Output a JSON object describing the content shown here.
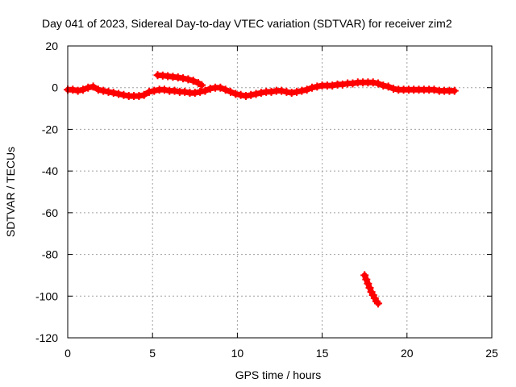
{
  "chart_data": {
    "type": "scatter",
    "title": "Day 041 of 2023, Sidereal Day-to-day VTEC variation (SDTVAR) for receiver zim2",
    "xlabel": "GPS time / hours",
    "ylabel": "SDTVAR / TECUs",
    "xlim": [
      0,
      25
    ],
    "ylim": [
      -120,
      20
    ],
    "xticks": [
      0,
      5,
      10,
      15,
      20,
      25
    ],
    "yticks": [
      -120,
      -100,
      -80,
      -60,
      -40,
      -20,
      0,
      20
    ],
    "grid": true,
    "point_marker": "+",
    "series": [
      {
        "name": "main trace",
        "color": "#ff0000",
        "x": [
          0.0,
          0.3,
          0.6,
          0.9,
          1.2,
          1.5,
          1.8,
          2.1,
          2.4,
          2.7,
          3.0,
          3.3,
          3.6,
          3.9,
          4.2,
          4.5,
          4.8,
          5.1,
          5.4,
          5.7,
          6.0,
          6.3,
          6.6,
          6.9,
          7.2,
          7.5,
          7.8,
          8.1,
          8.4,
          8.7,
          9.0,
          9.3,
          9.6,
          9.9,
          10.2,
          10.5,
          10.8,
          11.1,
          11.4,
          11.7,
          12.0,
          12.3,
          12.6,
          12.9,
          13.2,
          13.5,
          13.8,
          14.1,
          14.4,
          14.7,
          15.0,
          15.3,
          15.6,
          15.9,
          16.2,
          16.5,
          16.8,
          17.1,
          17.4,
          17.7,
          18.0,
          18.3,
          18.6,
          18.9,
          19.2,
          19.5,
          19.8,
          20.1,
          20.4,
          20.7,
          21.0,
          21.3,
          21.6,
          21.9,
          22.2,
          22.5,
          22.8
        ],
        "y": [
          -1,
          -1,
          -1.5,
          -1,
          0,
          0.5,
          -1,
          -1.5,
          -2,
          -2.5,
          -3,
          -3.5,
          -4,
          -4,
          -4,
          -3.5,
          -2,
          -1.5,
          -1,
          -1,
          -1.5,
          -1.5,
          -2,
          -2,
          -2.5,
          -2.5,
          -2,
          -1.5,
          -0.5,
          0,
          0,
          -1,
          -2,
          -3,
          -3.5,
          -4,
          -3.5,
          -3,
          -2.5,
          -2,
          -2,
          -1.5,
          -1.5,
          -2,
          -2.5,
          -2,
          -1.5,
          -1,
          0,
          0.5,
          1,
          1,
          1,
          1.5,
          1.5,
          2,
          2,
          2.5,
          2.5,
          2.5,
          2.5,
          2,
          1,
          0.5,
          -0.5,
          -1,
          -1,
          -1,
          -1,
          -1,
          -1,
          -1,
          -1,
          -1.5,
          -1.5,
          -1.5,
          -1.5
        ]
      },
      {
        "name": "upper segment",
        "color": "#ff0000",
        "x": [
          5.3,
          5.6,
          5.9,
          6.2,
          6.5,
          6.8,
          7.1,
          7.4,
          7.7,
          7.9
        ],
        "y": [
          6,
          5.8,
          5.5,
          5.2,
          4.9,
          4.5,
          4.0,
          3.3,
          2.2,
          1.2
        ]
      },
      {
        "name": "outlier segment",
        "color": "#ff0000",
        "x": [
          17.5,
          17.6,
          17.7,
          17.8,
          17.9,
          18.0,
          18.1,
          18.2,
          18.3
        ],
        "y": [
          -90,
          -92,
          -94,
          -96,
          -98,
          -99.5,
          -101,
          -102.5,
          -103.5
        ]
      }
    ]
  }
}
